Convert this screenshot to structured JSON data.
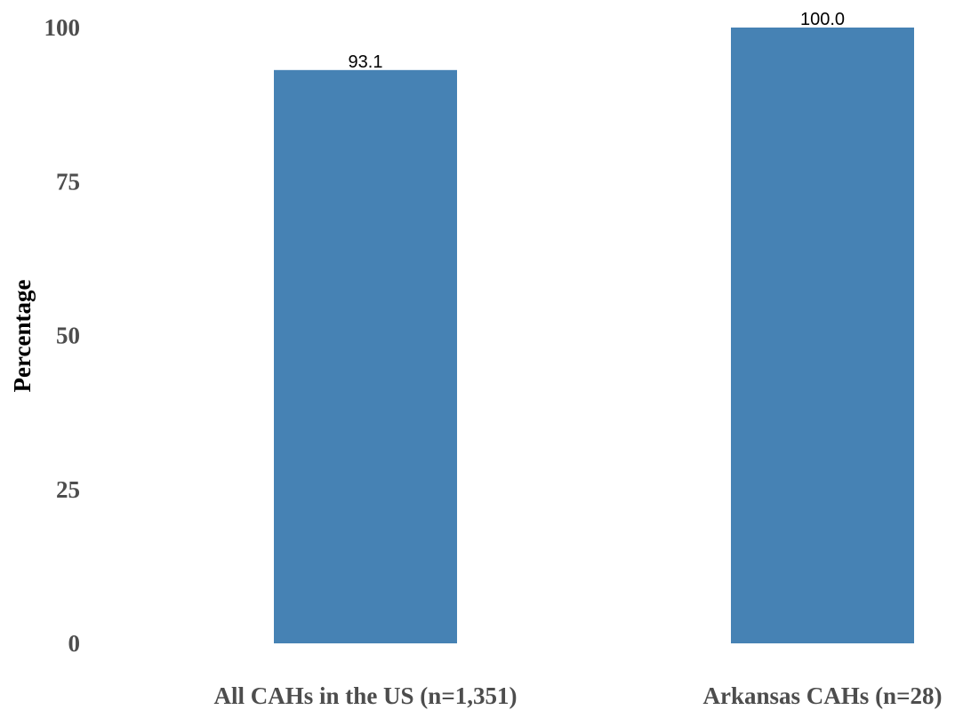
{
  "chart_data": {
    "type": "bar",
    "categories": [
      "All CAHs in the US (n=1,351)",
      "Arkansas CAHs (n=28)"
    ],
    "values": [
      93.1,
      100.0
    ],
    "value_labels": [
      "93.1",
      "100.0"
    ],
    "title": "",
    "xlabel": "",
    "ylabel": "Percentage",
    "ylim": [
      0,
      100
    ],
    "yticks": [
      0,
      25,
      50,
      75,
      100
    ],
    "grid": false,
    "legend": "none",
    "bar_color": "#4682b4"
  }
}
